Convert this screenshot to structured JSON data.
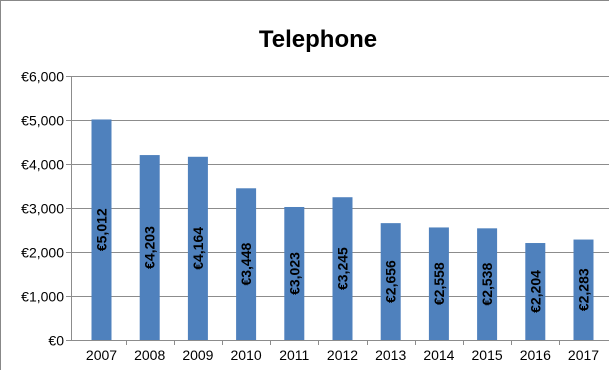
{
  "chart_data": {
    "type": "bar",
    "title": "Telephone",
    "xlabel": "",
    "ylabel": "",
    "categories": [
      "2007",
      "2008",
      "2009",
      "2010",
      "2011",
      "2012",
      "2013",
      "2014",
      "2015",
      "2016",
      "2017"
    ],
    "values": [
      5012,
      4203,
      4164,
      3448,
      3023,
      3245,
      2656,
      2558,
      2538,
      2204,
      2283
    ],
    "data_labels": [
      "€5,012",
      "€4,203",
      "€4,164",
      "€3,448",
      "€3,023",
      "€3,245",
      "€2,656",
      "€2,558",
      "€2,538",
      "€2,204",
      "€2,283"
    ],
    "ylim": [
      0,
      6000
    ],
    "y_ticks": [
      0,
      1000,
      2000,
      3000,
      4000,
      5000,
      6000
    ],
    "y_tick_labels": [
      "€0",
      "€1,000",
      "€2,000",
      "€3,000",
      "€4,000",
      "€5,000",
      "€6,000"
    ],
    "grid": true,
    "legend": "none",
    "bar_color": "#4F81BD",
    "gridline_color": "#8C8C8C",
    "axis_color": "#8C8C8C"
  }
}
